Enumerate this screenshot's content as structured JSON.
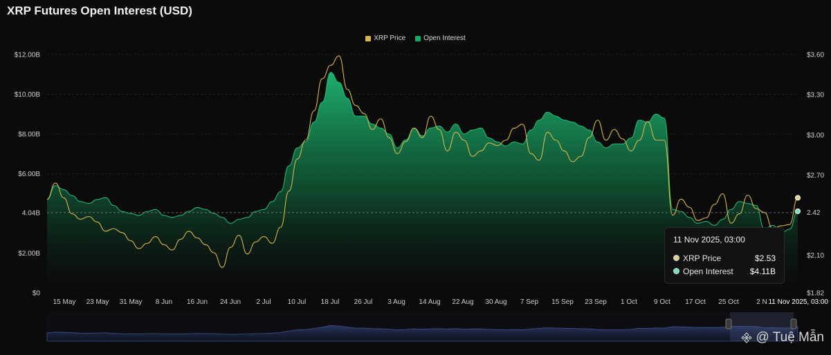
{
  "title": "XRP Futures Open Interest (USD)",
  "legend": [
    {
      "label": "XRP Price",
      "color": "#d8b84a"
    },
    {
      "label": "Open Interest",
      "color": "#18a86a"
    }
  ],
  "tooltip": {
    "time": "11 Nov 2025, 03:00",
    "rows": [
      {
        "label": "XRP Price",
        "value": "$2.53",
        "color": "#e0cf8c"
      },
      {
        "label": "Open Interest",
        "value": "$4.11B",
        "color": "#6fe3b0"
      }
    ]
  },
  "watermark": "@ Tuệ Mẫn",
  "chart_data": {
    "type": "area",
    "x_ticks": [
      "15 May",
      "23 May",
      "31 May",
      "8 Jun",
      "16 Jun",
      "24 Jun",
      "2 Jul",
      "10 Jul",
      "18 Jul",
      "26 Jul",
      "3 Aug",
      "14 Aug",
      "22 Aug",
      "30 Aug",
      "7 Sep",
      "15 Sep",
      "23 Sep",
      "1 Oct",
      "9 Oct",
      "17 Oct",
      "25 Oct",
      "2 N"
    ],
    "x_hover_label": "11 Nov 2025, 03:00",
    "y_left": {
      "ticks": [
        "$0",
        "$2.00B",
        "4.04B",
        "$6.00B",
        "$8.00B",
        "$10.00B",
        "$12.00B"
      ],
      "tick_values": [
        0,
        2,
        4.04,
        6,
        8,
        10,
        12
      ],
      "range": [
        0,
        12
      ],
      "unit": "B USD"
    },
    "y_right": {
      "ticks": [
        "$1.82",
        "$2.10",
        "2.42",
        "$2.70",
        "$3.00",
        "$3.30",
        "$3.60"
      ],
      "tick_values": [
        1.82,
        2.1,
        2.42,
        2.7,
        3.0,
        3.3,
        3.6
      ],
      "range": [
        1.82,
        3.6
      ]
    },
    "crosshair_value": 4.04,
    "grid": true,
    "legend_position": "top-center",
    "series": [
      {
        "name": "Open Interest",
        "axis": "left",
        "color": "#1fbf78",
        "values": [
          4.7,
          5.4,
          5.2,
          4.9,
          4.6,
          4.5,
          4.7,
          4.8,
          4.4,
          4.1,
          4.0,
          3.9,
          4.1,
          4.2,
          3.9,
          3.8,
          3.9,
          4.1,
          4.3,
          4.2,
          4.0,
          3.8,
          3.5,
          3.7,
          3.8,
          4.1,
          4.2,
          4.6,
          5.1,
          6.4,
          7.3,
          7.6,
          8.6,
          9.6,
          11.1,
          10.6,
          9.8,
          8.9,
          8.9,
          8.5,
          8.3,
          8.0,
          7.3,
          7.7,
          8.3,
          7.9,
          8.3,
          8.4,
          8.1,
          8.5,
          8.0,
          8.2,
          8.3,
          7.8,
          7.6,
          7.4,
          7.6,
          7.5,
          8.2,
          8.7,
          9.1,
          8.9,
          8.7,
          8.6,
          8.4,
          8.2,
          7.6,
          7.3,
          7.5,
          7.5,
          7.8,
          8.7,
          8.6,
          9.0,
          8.8,
          4.2,
          4.1,
          3.8,
          3.5,
          3.6,
          3.4,
          3.7,
          4.2,
          4.6,
          4.5,
          4.4,
          3.2,
          3.4,
          3.0,
          3.2,
          4.11
        ]
      },
      {
        "name": "XRP Price",
        "axis": "right",
        "color": "#d8b84a",
        "values": [
          2.52,
          2.64,
          2.53,
          2.41,
          2.37,
          2.39,
          2.35,
          2.28,
          2.3,
          2.27,
          2.21,
          2.15,
          2.19,
          2.24,
          2.18,
          2.14,
          2.22,
          2.28,
          2.23,
          2.18,
          2.12,
          2.01,
          2.16,
          2.25,
          2.11,
          2.2,
          2.24,
          2.19,
          2.31,
          2.58,
          2.82,
          2.96,
          3.18,
          3.42,
          3.52,
          3.59,
          3.34,
          3.22,
          3.16,
          3.04,
          3.12,
          2.98,
          2.86,
          2.95,
          3.05,
          2.98,
          3.14,
          3.04,
          2.88,
          3.02,
          2.96,
          2.84,
          2.88,
          2.94,
          2.92,
          2.96,
          3.05,
          3.08,
          2.86,
          2.81,
          3.02,
          2.96,
          2.88,
          2.8,
          2.84,
          2.98,
          3.11,
          2.96,
          3.04,
          2.97,
          2.88,
          2.96,
          3.1,
          2.96,
          2.96,
          2.4,
          2.52,
          2.46,
          2.36,
          2.38,
          2.48,
          2.56,
          2.34,
          2.41,
          2.55,
          2.45,
          2.42,
          2.3,
          2.32,
          2.33,
          2.53
        ]
      }
    ]
  }
}
